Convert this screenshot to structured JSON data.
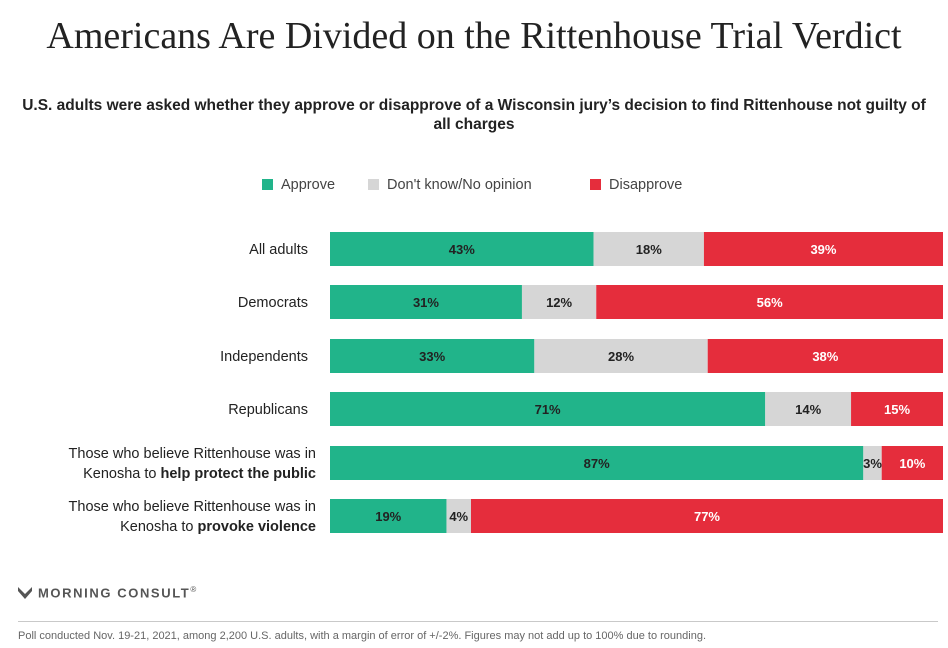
{
  "colors": {
    "approve": "#21b48a",
    "dont_know": "#d6d6d6",
    "disapprove": "#e52d3c",
    "text": "#222222",
    "text_light": "#ffffff"
  },
  "chart_data": {
    "type": "bar",
    "orientation": "horizontal",
    "stacked": true,
    "title": "Americans Are Divided on the Rittenhouse Trial Verdict",
    "subtitle": "U.S. adults were asked whether they approve or disapprove of a Wisconsin jury’s decision to find Rittenhouse not guilty of all charges",
    "legend_position": "top-center",
    "value_suffix": "%",
    "categories": [
      {
        "label": [
          "All adults"
        ],
        "values": [
          43,
          18,
          39
        ]
      },
      {
        "label": [
          "Democrats"
        ],
        "values": [
          31,
          12,
          56
        ]
      },
      {
        "label": [
          "Independents"
        ],
        "values": [
          33,
          28,
          38
        ]
      },
      {
        "label": [
          "Republicans"
        ],
        "values": [
          71,
          14,
          15
        ]
      },
      {
        "label": [
          "Those who believe Rittenhouse was in",
          "Kenosha to ",
          "help protect the public"
        ],
        "values": [
          87,
          3,
          10
        ]
      },
      {
        "label": [
          "Those who believe Rittenhouse was in",
          "Kenosha to ",
          "provoke violence"
        ],
        "values": [
          19,
          4,
          77
        ]
      }
    ],
    "series": [
      {
        "name": "Approve",
        "color_key": "approve"
      },
      {
        "name": "Don't know/No opinion",
        "color_key": "dont_know"
      },
      {
        "name": "Disapprove",
        "color_key": "disapprove"
      }
    ]
  },
  "footer": {
    "brand": "MORNING CONSULT",
    "trademark": "®",
    "note": "Poll conducted Nov. 19-21, 2021, among 2,200 U.S. adults, with a margin of error of +/-2%. Figures may not add up to 100% due to rounding."
  }
}
